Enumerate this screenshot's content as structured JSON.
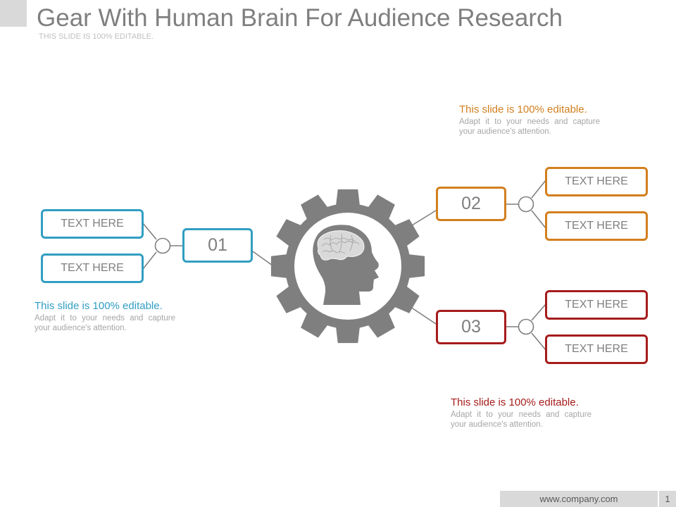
{
  "slide": {
    "title": "Gear With Human Brain For Audience Research",
    "subtitle": "THIS SLIDE IS 100% EDITABLE."
  },
  "colors": {
    "blue": "#319ec2",
    "orange": "#d27f1e",
    "red": "#a61c1c",
    "gear": "#7f7f7f"
  },
  "icons": {
    "center": "gear-with-head-and-brain-icon"
  },
  "branches": [
    {
      "number": "01",
      "items": [
        "TEXT HERE",
        "TEXT HERE"
      ],
      "note_heading": "This slide is 100% editable.",
      "note_body": "Adapt it to your needs and capture your audience's attention."
    },
    {
      "number": "02",
      "items": [
        "TEXT HERE",
        "TEXT HERE"
      ],
      "note_heading": "This slide is 100% editable.",
      "note_body": "Adapt it to your needs and capture your audience's attention."
    },
    {
      "number": "03",
      "items": [
        "TEXT HERE",
        "TEXT HERE"
      ],
      "note_heading": "This slide is 100% editable.",
      "note_body": "Adapt it to your needs and capture your audience's attention."
    }
  ],
  "footer": {
    "website": "www.company.com",
    "page_number": "1"
  }
}
